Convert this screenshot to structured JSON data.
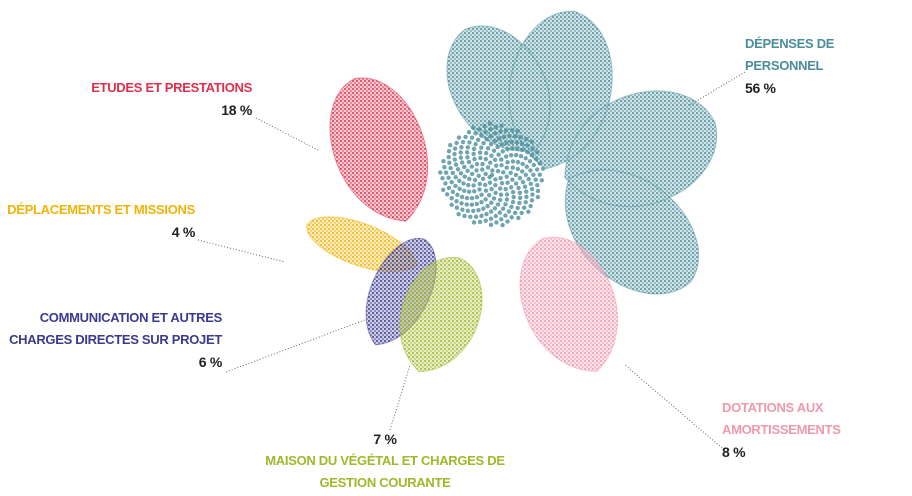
{
  "chart_data": {
    "type": "pie",
    "categories": [
      "DÉPENSES DE PERSONNEL",
      "ETUDES ET PRESTATIONS",
      "DÉPLACEMENTS ET MISSIONS",
      "COMMUNICATION ET AUTRES CHARGES DIRECTES SUR PROJET",
      "MAISON DU VÉGÉTAL ET CHARGES DE GESTION COURANTE",
      "DOTATIONS AUX AMORTISSEMENTS"
    ],
    "values": [
      56,
      18,
      4,
      6,
      7,
      8
    ],
    "value_labels": [
      "56 %",
      "18 %",
      "4 %",
      "6 %",
      "7 %",
      "8 %"
    ],
    "colors": [
      "#4b8e9b",
      "#e0304c",
      "#efb408",
      "#3b3a8f",
      "#a2b72a",
      "#ef98ae"
    ]
  }
}
